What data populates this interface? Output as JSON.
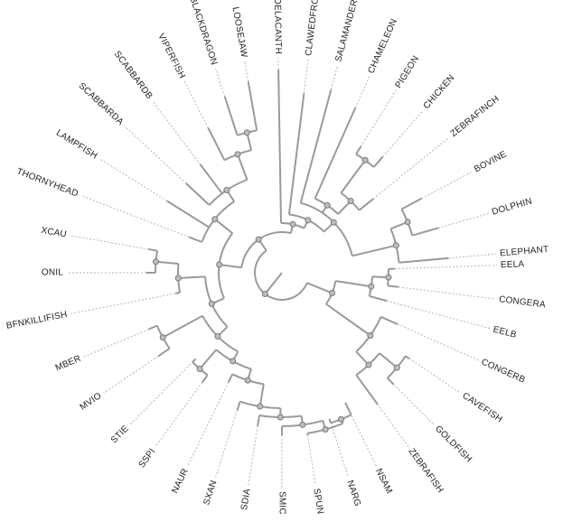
{
  "tree": {
    "style": {
      "branch_color": "#9a9a9a",
      "node_fill": "#bdbdbd",
      "label_color": "#222222"
    },
    "leaves": [
      "ELEPHANT",
      "DOLPHIN",
      "BOVINE",
      "ZEBRAFINCH",
      "CHICKEN",
      "PIGEON",
      "CHAMELEON",
      "SALAMANDER",
      "CLAWEDFROG",
      "COELACANTH",
      "LOOSEJAW",
      "BLACKDRAGON",
      "VIPERFISH",
      "SCABBARDB",
      "SCABBARDA",
      "LAMPFISH",
      "THORNYHEAD",
      "XCAU",
      "ONIL",
      "BFNKILLIFISH",
      "MBER",
      "MVIO",
      "STIE",
      "SSPI",
      "NAUR",
      "SXAN",
      "SDIA",
      "SMIC",
      "SPUN",
      "NARG",
      "NSAM",
      "ZEBRAFISH",
      "GOLDFISH",
      "CAVEFISH",
      "CONGERB",
      "EELB",
      "CONGERA",
      "EELA"
    ]
  }
}
